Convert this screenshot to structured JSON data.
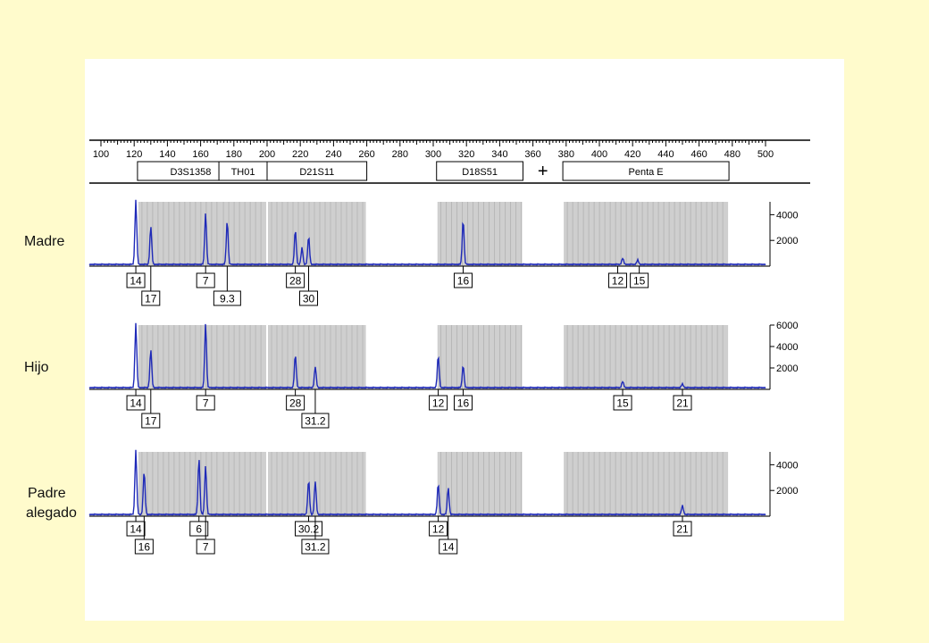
{
  "scale": {
    "min": 100,
    "max": 500,
    "major_step": 20,
    "tick_labels": [
      "100",
      "120",
      "140",
      "160",
      "180",
      "200",
      "220",
      "240",
      "260",
      "280",
      "300",
      "320",
      "340",
      "360",
      "380",
      "400",
      "420",
      "440",
      "460",
      "480",
      "500"
    ]
  },
  "loci": [
    {
      "name": "D3S1358",
      "range": [
        122,
        186
      ]
    },
    {
      "name": "TH01",
      "range": [
        171,
        200
      ]
    },
    {
      "name": "D21S11",
      "range": [
        200,
        260
      ]
    },
    {
      "name": "D18S51",
      "range": [
        302,
        354
      ]
    },
    {
      "name": "Penta E",
      "range": [
        378,
        478
      ]
    }
  ],
  "cross_marker": "+",
  "colors": {
    "trace": "#1f2ab8",
    "bin": "#cfcfcf",
    "bin_line": "#a8a8a8",
    "axis": "#000000"
  },
  "chart_data": {
    "type": "line",
    "title": "",
    "xlabel": "",
    "ylabel": "",
    "xlim": [
      100,
      500
    ],
    "series": [
      {
        "name": "Madre",
        "label": "Madre",
        "ylim": [
          0,
          5000
        ],
        "ytick_labels": [
          "4000",
          "2000"
        ],
        "ytick_values": [
          4000,
          2000
        ],
        "peaks": [
          {
            "size": 121,
            "height": 5000
          },
          {
            "size": 130,
            "height": 3000
          },
          {
            "size": 163,
            "height": 4000
          },
          {
            "size": 176,
            "height": 3400
          },
          {
            "size": 217,
            "height": 2700
          },
          {
            "size": 221,
            "height": 1300
          },
          {
            "size": 225,
            "height": 2200
          },
          {
            "size": 318,
            "height": 3500
          },
          {
            "size": 414,
            "height": 500
          },
          {
            "size": 423,
            "height": 350
          }
        ],
        "alleles": [
          {
            "label": "14",
            "size": 121,
            "row": 0
          },
          {
            "label": "17",
            "size": 130,
            "row": 1
          },
          {
            "label": "7",
            "size": 163,
            "row": 0
          },
          {
            "label": "9.3",
            "size": 176,
            "row": 1
          },
          {
            "label": "28",
            "size": 217,
            "row": 0
          },
          {
            "label": "30",
            "size": 225,
            "row": 1
          },
          {
            "label": "16",
            "size": 318,
            "row": 0
          },
          {
            "label": "12",
            "size": 411,
            "row": 0
          },
          {
            "label": "15",
            "size": 424,
            "row": 0
          }
        ]
      },
      {
        "name": "Hijo",
        "label": "Hijo",
        "ylim": [
          0,
          6000
        ],
        "ytick_labels": [
          "6000",
          "4000",
          "2000"
        ],
        "ytick_values": [
          6000,
          4000,
          2000
        ],
        "peaks": [
          {
            "size": 121,
            "height": 6000
          },
          {
            "size": 130,
            "height": 3600
          },
          {
            "size": 163,
            "height": 6000
          },
          {
            "size": 217,
            "height": 3100
          },
          {
            "size": 229,
            "height": 2000
          },
          {
            "size": 303,
            "height": 3000
          },
          {
            "size": 318,
            "height": 2100
          },
          {
            "size": 414,
            "height": 600
          },
          {
            "size": 450,
            "height": 350
          }
        ],
        "alleles": [
          {
            "label": "14",
            "size": 121,
            "row": 0
          },
          {
            "label": "17",
            "size": 130,
            "row": 1
          },
          {
            "label": "7",
            "size": 163,
            "row": 0
          },
          {
            "label": "28",
            "size": 217,
            "row": 0
          },
          {
            "label": "31.2",
            "size": 229,
            "row": 1
          },
          {
            "label": "12",
            "size": 303,
            "row": 0
          },
          {
            "label": "16",
            "size": 318,
            "row": 0
          },
          {
            "label": "15",
            "size": 414,
            "row": 0
          },
          {
            "label": "21",
            "size": 450,
            "row": 0
          }
        ]
      },
      {
        "name": "Padre alegado",
        "label": "Padre\nalegado",
        "ylim": [
          0,
          5000
        ],
        "ytick_labels": [
          "4000",
          "2000"
        ],
        "ytick_values": [
          4000,
          2000
        ],
        "peaks": [
          {
            "size": 121,
            "height": 5000
          },
          {
            "size": 126,
            "height": 3400
          },
          {
            "size": 159,
            "height": 4400
          },
          {
            "size": 163,
            "height": 3800
          },
          {
            "size": 225,
            "height": 2700
          },
          {
            "size": 229,
            "height": 2600
          },
          {
            "size": 303,
            "height": 2400
          },
          {
            "size": 309,
            "height": 2100
          },
          {
            "size": 450,
            "height": 700
          }
        ],
        "alleles": [
          {
            "label": "14",
            "size": 121,
            "row": 0
          },
          {
            "label": "16",
            "size": 126,
            "row": 1
          },
          {
            "label": "6",
            "size": 159,
            "row": 0
          },
          {
            "label": "7",
            "size": 163,
            "row": 1
          },
          {
            "label": "30.2",
            "size": 225,
            "row": 0
          },
          {
            "label": "31.2",
            "size": 229,
            "row": 1
          },
          {
            "label": "12",
            "size": 303,
            "row": 0
          },
          {
            "label": "14",
            "size": 309,
            "row": 1
          },
          {
            "label": "21",
            "size": 450,
            "row": 0
          }
        ]
      }
    ]
  }
}
